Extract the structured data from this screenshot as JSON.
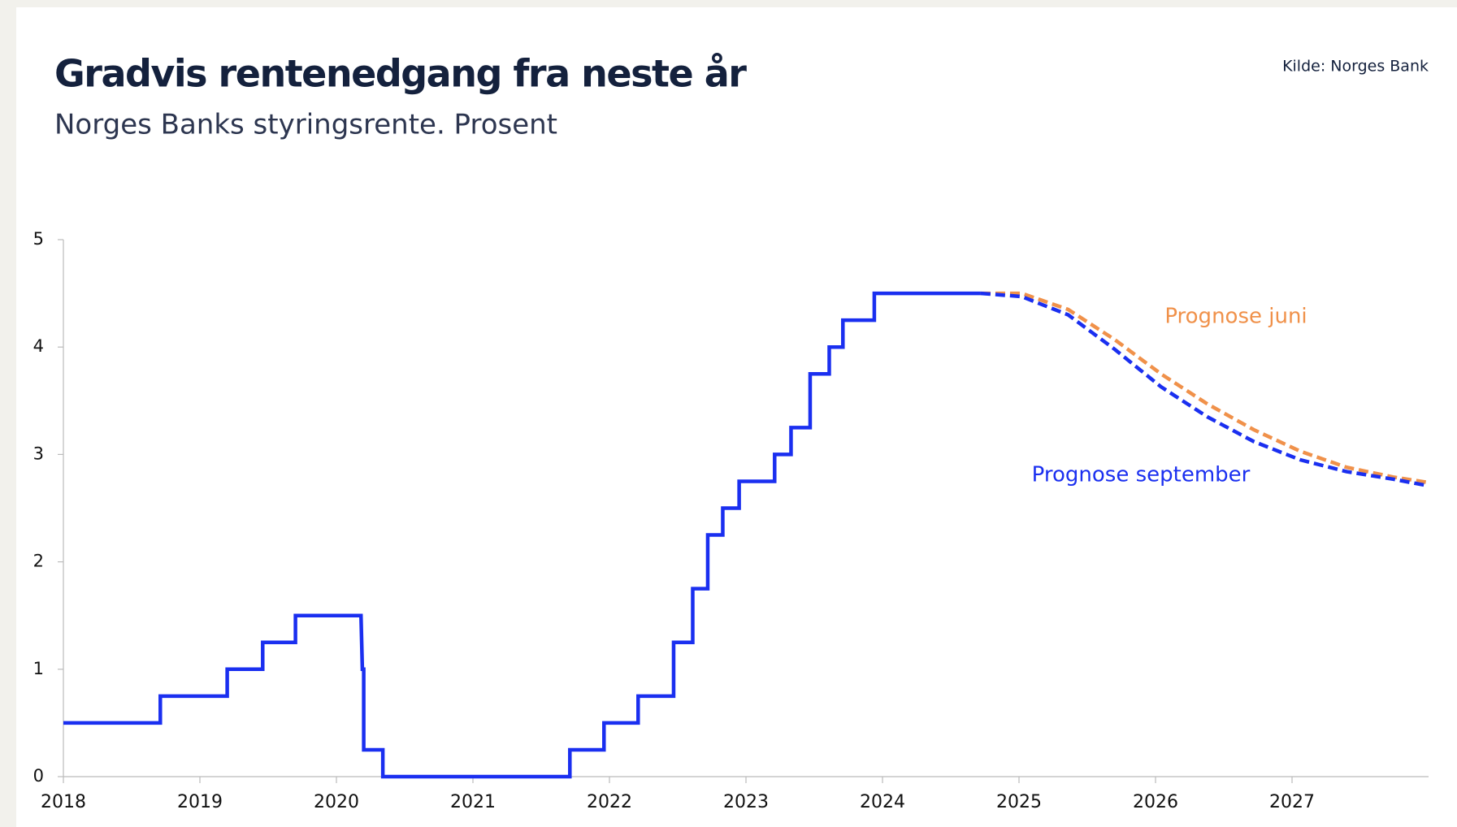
{
  "chart_data": {
    "type": "line",
    "title": "Gradvis rentenedgang fra neste år",
    "subtitle": "Norges Banks styringsrente. Prosent",
    "source": "Kilde: Norges Bank",
    "xlim": [
      2018,
      2028
    ],
    "xticks": [
      2018,
      2019,
      2020,
      2021,
      2022,
      2023,
      2024,
      2025,
      2026,
      2027
    ],
    "ylim": [
      0,
      5
    ],
    "yticks": [
      0,
      1,
      2,
      3,
      4,
      5
    ],
    "series": [
      {
        "color": "#1a2ff0",
        "dash": false,
        "x": [
          2018,
          2018.71,
          2018.71,
          2019.2,
          2019.2,
          2019.46,
          2019.46,
          2019.7,
          2019.7,
          2020.18,
          2020.19,
          2020.2,
          2020.2,
          2020.34,
          2020.34,
          2021.71,
          2021.71,
          2021.96,
          2021.96,
          2022.21,
          2022.21,
          2022.47,
          2022.47,
          2022.61,
          2022.61,
          2022.72,
          2022.72,
          2022.83,
          2022.83,
          2022.95,
          2022.95,
          2023.21,
          2023.21,
          2023.33,
          2023.33,
          2023.47,
          2023.47,
          2023.61,
          2023.61,
          2023.71,
          2023.71,
          2023.94,
          2023.94,
          2024.72
        ],
        "values": [
          0.5,
          0.5,
          0.75,
          0.75,
          1,
          1,
          1.25,
          1.25,
          1.5,
          1.5,
          1,
          1,
          0.25,
          0.25,
          0,
          0,
          0.25,
          0.25,
          0.5,
          0.5,
          0.75,
          0.75,
          1.25,
          1.25,
          1.75,
          1.75,
          2.25,
          2.25,
          2.5,
          2.5,
          2.75,
          2.75,
          3,
          3,
          3.25,
          3.25,
          3.75,
          3.75,
          4,
          4,
          4.25,
          4.25,
          4.5,
          4.5
        ]
      },
      {
        "name": "Prognose juni",
        "color": "#f0914a",
        "dash": true,
        "x": [
          2024.72,
          2025.02,
          2025.36,
          2025.7,
          2026.04,
          2026.38,
          2026.72,
          2027.06,
          2027.4,
          2027.74,
          2027.99
        ],
        "values": [
          4.5,
          4.5,
          4.35,
          4.07,
          3.75,
          3.47,
          3.23,
          3.03,
          2.88,
          2.79,
          2.74
        ]
      },
      {
        "name": "Prognose september",
        "color": "#1a2ff0",
        "dash": true,
        "x": [
          2024.72,
          2025.02,
          2025.36,
          2025.7,
          2026.04,
          2026.38,
          2026.72,
          2027.06,
          2027.4,
          2027.74,
          2027.99
        ],
        "values": [
          4.5,
          4.47,
          4.3,
          3.98,
          3.63,
          3.35,
          3.12,
          2.95,
          2.84,
          2.77,
          2.71
        ]
      }
    ]
  }
}
